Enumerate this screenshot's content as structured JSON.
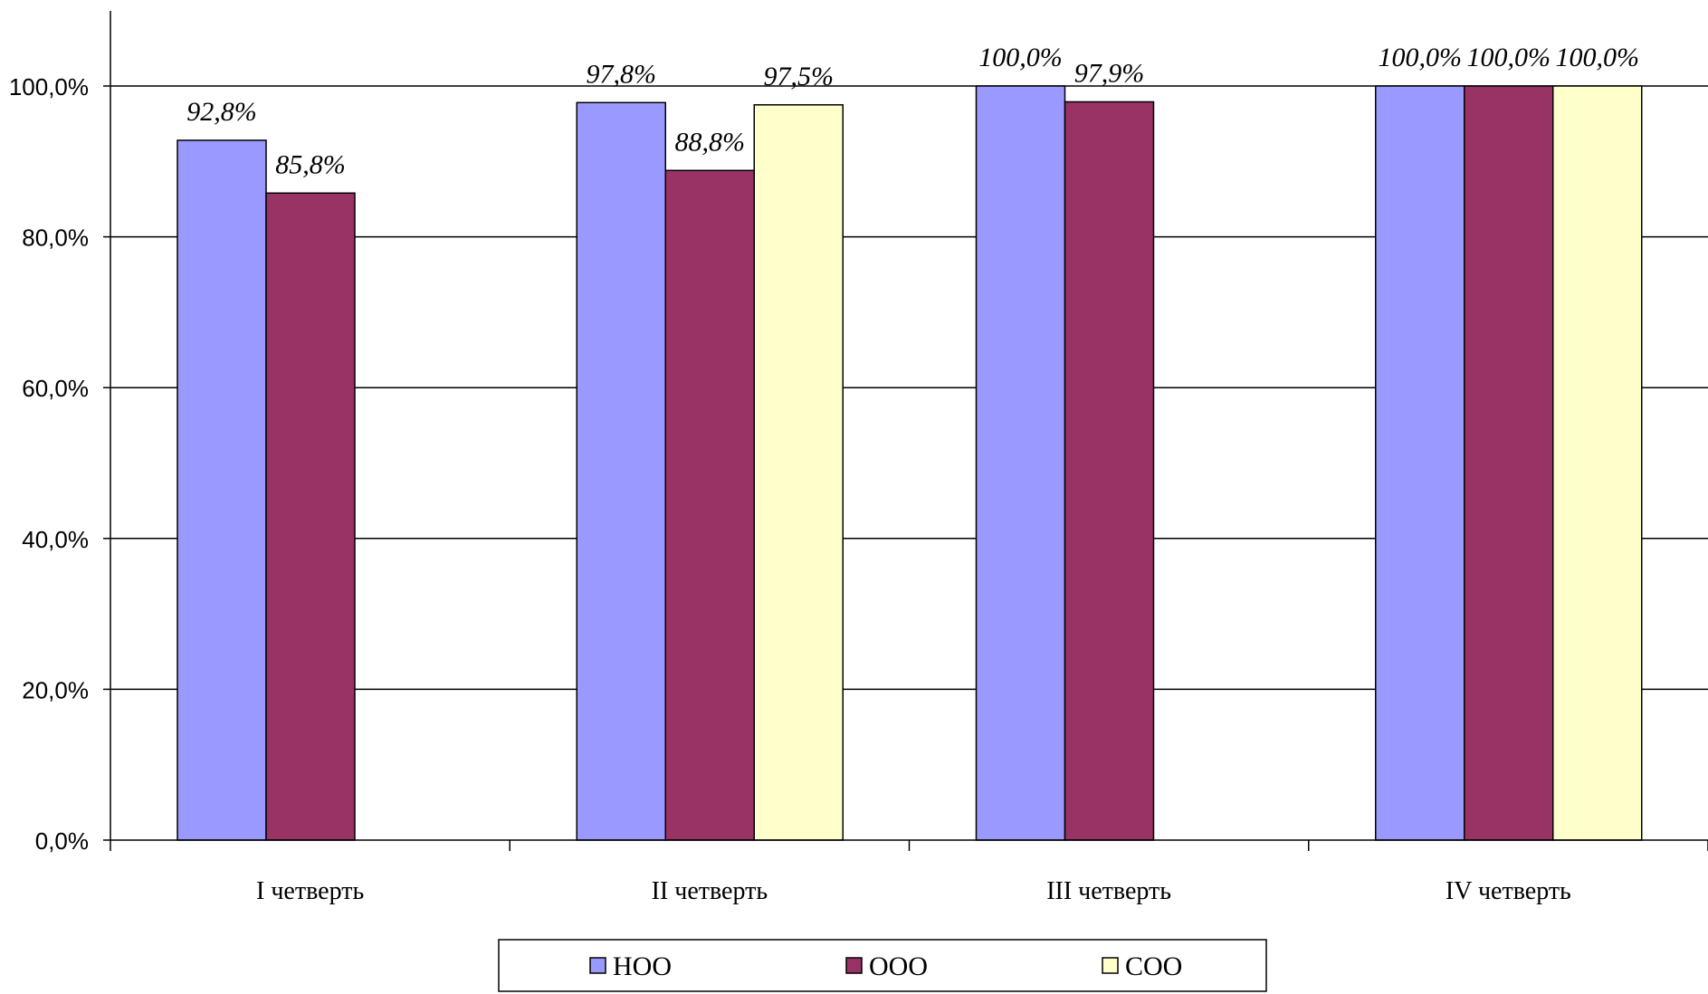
{
  "chart_data": {
    "type": "bar",
    "categories": [
      "I четверть",
      "II четверть",
      "III четверть",
      "IV четверть"
    ],
    "series": [
      {
        "name": "НОО",
        "color": "#9999ff",
        "values": [
          92.8,
          97.8,
          100.0,
          100.0
        ],
        "labels": [
          "92,8%",
          "97,8%",
          "100,0%",
          "100,0%"
        ]
      },
      {
        "name": "ООО",
        "color": "#993366",
        "values": [
          85.8,
          88.8,
          97.9,
          100.0
        ],
        "labels": [
          "85,8%",
          "88,8%",
          "97,9%",
          "100,0%"
        ]
      },
      {
        "name": "СОО",
        "color": "#ffffcc",
        "values": [
          null,
          97.5,
          null,
          100.0
        ],
        "labels": [
          "",
          "97,5%",
          "",
          "100,0%"
        ]
      }
    ],
    "yticks": [
      0,
      20,
      40,
      60,
      80,
      100
    ],
    "ytick_labels": [
      "0,0%",
      "20,0%",
      "40,0%",
      "60,0%",
      "80,0%",
      "100,0%"
    ],
    "ylim": [
      0,
      110
    ],
    "grid": true,
    "legend": "bottom-center"
  }
}
